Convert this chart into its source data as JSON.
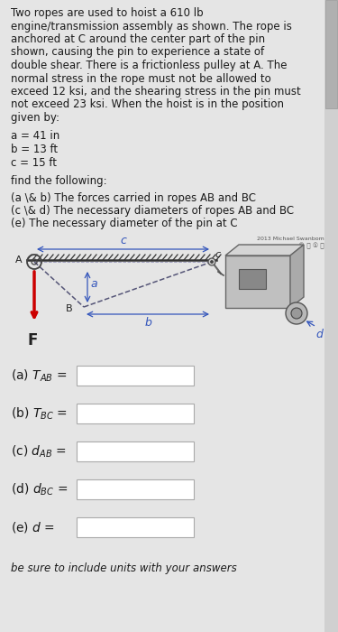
{
  "bg_color": "#e5e5e5",
  "text_color": "#1a1a1a",
  "paragraph_lines": [
    "Two ropes are used to hoist a 610 lb",
    "engine/transmission assembly as shown. The rope is",
    "anchored at C around the center part of the pin",
    "shown, causing the pin to experience a state of",
    "double shear. There is a frictionless pulley at A. The",
    "normal stress in the rope must not be allowed to",
    "exceed 12 ksi, and the shearing stress in the pin must",
    "not exceed 23 ksi. When the hoist is in the position",
    "given by:"
  ],
  "params_lines": [
    "a = 41 in",
    "b = 13 ft",
    "c = 15 ft"
  ],
  "find_line": "find the following:",
  "items_lines": [
    "(a \\& b) The forces carried in ropes AB and BC",
    "(c \\& d) The necessary diameters of ropes AB and BC",
    "(e) The necessary diameter of the pin at C"
  ],
  "watermark": "2013 Michael Swanbom",
  "footer_text": "be sure to include units with your answers",
  "box_color": "#ffffff",
  "box_border": "#bbbbbb"
}
